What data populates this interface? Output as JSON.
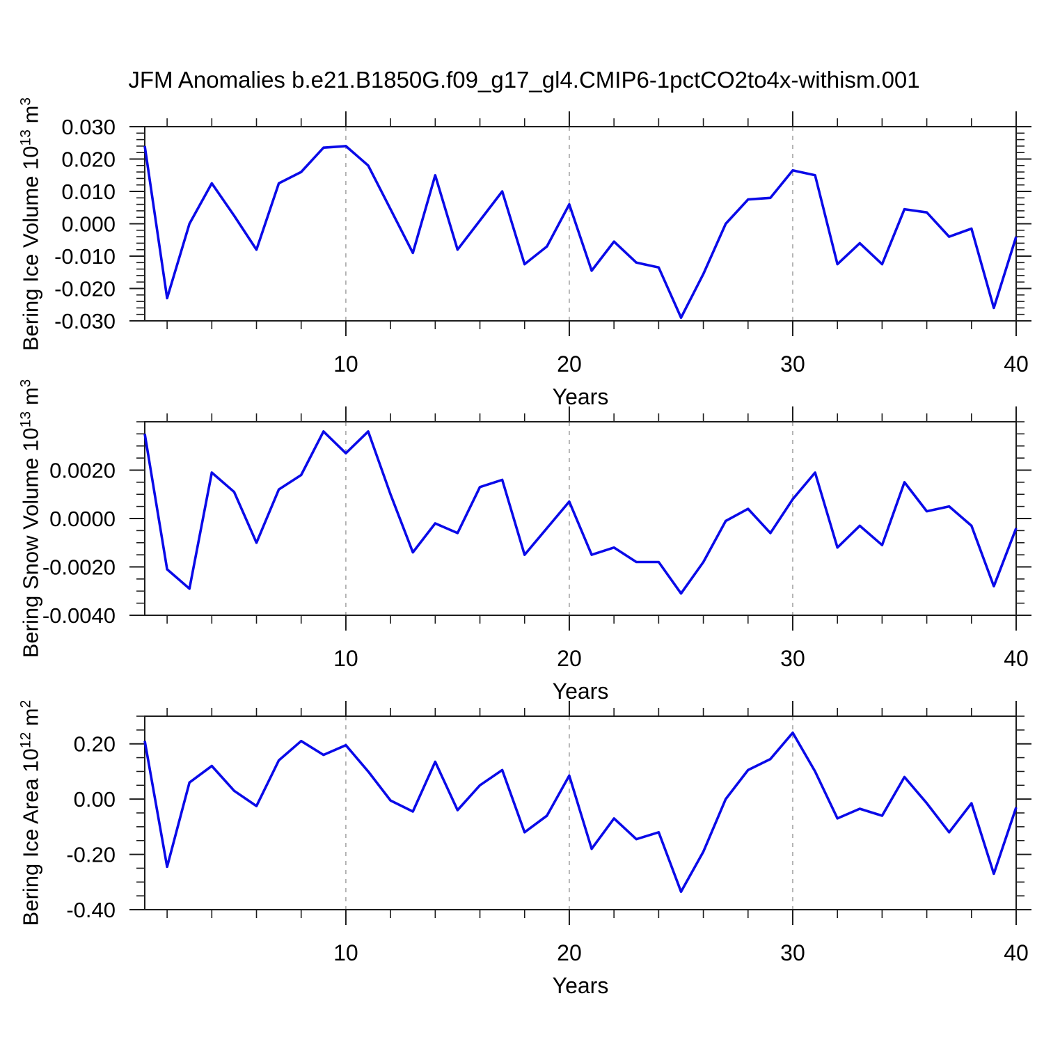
{
  "title": "JFM Anomalies b.e21.B1850G.f09_g17_gl4.CMIP6-1pctCO2to4x-withism.001",
  "chart_data": {
    "type": "line",
    "title": "JFM Anomalies b.e21.B1850G.f09_g17_gl4.CMIP6-1pctCO2to4x-withism.001",
    "line_color": "#0a0ae8",
    "grid_color": "#999999",
    "axis_color": "#1c1c1c",
    "legend": "none",
    "x": {
      "title": "Years",
      "min": 1,
      "max": 40,
      "start_year": 1,
      "step": 1,
      "majors": [
        10,
        20,
        30,
        40
      ],
      "major_labels": [
        "10",
        "20",
        "30",
        "40"
      ],
      "minor_step": 2,
      "gridlines": [
        10,
        20,
        30
      ]
    },
    "panels": [
      {
        "name": "bering-ice-volume",
        "ylabel": {
          "base": "Bering Ice Volume 10",
          "exp": "13",
          "unit": " m",
          "unit_exp": "3"
        },
        "ylim": [
          -0.03,
          0.03
        ],
        "yminor_step": 0.002,
        "yticks": [
          {
            "v": 0.03,
            "label": "0.030"
          },
          {
            "v": 0.02,
            "label": "0.020"
          },
          {
            "v": 0.01,
            "label": "0.010"
          },
          {
            "v": 0.0,
            "label": "0.000"
          },
          {
            "v": -0.01,
            "label": "-0.010"
          },
          {
            "v": -0.02,
            "label": "-0.020"
          },
          {
            "v": -0.03,
            "label": "-0.030"
          }
        ],
        "values": [
          0.024,
          -0.023,
          0.0,
          0.0125,
          0.0025,
          -0.008,
          0.0125,
          0.016,
          0.0235,
          0.024,
          0.018,
          0.0045,
          -0.009,
          0.015,
          -0.008,
          0.001,
          0.01,
          -0.0125,
          -0.007,
          0.006,
          -0.0145,
          -0.0055,
          -0.012,
          -0.0135,
          -0.029,
          -0.0155,
          0.0,
          0.0075,
          0.008,
          0.0165,
          0.015,
          -0.0125,
          -0.006,
          -0.0125,
          0.0045,
          0.0035,
          -0.004,
          -0.0015,
          -0.026,
          -0.004
        ]
      },
      {
        "name": "bering-snow-volume",
        "ylabel": {
          "base": "Bering Snow Volume 10",
          "exp": "13",
          "unit": " m",
          "unit_exp": "3"
        },
        "ylim": [
          -0.004,
          0.004
        ],
        "yminor_step": 0.0005,
        "yticks": [
          {
            "v": 0.002,
            "label": "0.0020"
          },
          {
            "v": 0.0,
            "label": "0.0000"
          },
          {
            "v": -0.002,
            "label": "-0.0020"
          },
          {
            "v": -0.004,
            "label": "-0.0040"
          }
        ],
        "values": [
          0.0035,
          -0.0021,
          -0.0029,
          0.0019,
          0.0011,
          -0.001,
          0.0012,
          0.0018,
          0.0036,
          0.0027,
          0.0036,
          0.001,
          -0.0014,
          -0.0002,
          -0.0006,
          0.0013,
          0.0016,
          -0.0015,
          -0.0004,
          0.0007,
          -0.0015,
          -0.0012,
          -0.0018,
          -0.0018,
          -0.0031,
          -0.0018,
          -0.0001,
          0.0004,
          -0.0006,
          0.0008,
          0.0019,
          -0.0012,
          -0.0003,
          -0.0011,
          0.0015,
          0.0003,
          0.0005,
          -0.0003,
          -0.0028,
          -0.0004
        ]
      },
      {
        "name": "bering-ice-area",
        "ylabel": {
          "base": "Bering Ice Area 10",
          "exp": "12",
          "unit": " m",
          "unit_exp": "2"
        },
        "ylim": [
          -0.4,
          0.3
        ],
        "yminor_step": 0.05,
        "yticks": [
          {
            "v": 0.2,
            "label": "0.20"
          },
          {
            "v": 0.0,
            "label": "0.00"
          },
          {
            "v": -0.2,
            "label": "-0.20"
          },
          {
            "v": -0.4,
            "label": "-0.40"
          }
        ],
        "values": [
          0.21,
          -0.245,
          0.06,
          0.12,
          0.03,
          -0.025,
          0.14,
          0.21,
          0.16,
          0.195,
          0.1,
          -0.005,
          -0.045,
          0.135,
          -0.04,
          0.05,
          0.105,
          -0.12,
          -0.06,
          0.085,
          -0.18,
          -0.07,
          -0.145,
          -0.12,
          -0.335,
          -0.19,
          0.0,
          0.105,
          0.145,
          0.24,
          0.1,
          -0.07,
          -0.035,
          -0.06,
          0.08,
          -0.015,
          -0.12,
          -0.015,
          -0.27,
          -0.03
        ]
      }
    ]
  }
}
